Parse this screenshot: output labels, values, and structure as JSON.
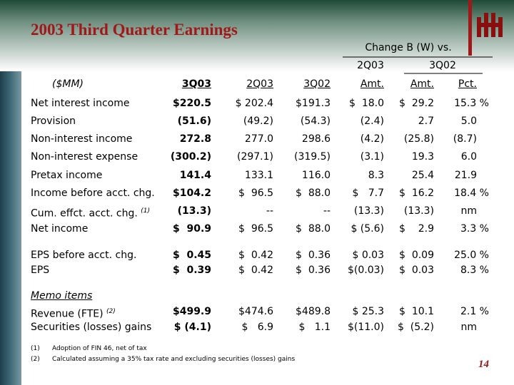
{
  "title": "2003 Third Quarter Earnings",
  "page_number": "14",
  "header": {
    "change_label": "Change B (W) vs.",
    "group_1": "2Q03",
    "group_2": "3Q02",
    "units": "($MM)",
    "columns": [
      "3Q03",
      "2Q03",
      "3Q02",
      "Amt.",
      "Amt.",
      "Pct."
    ]
  },
  "rows": [
    {
      "label": "Net interest income",
      "cells": [
        "$220.5",
        "$ 202.4",
        "$191.3",
        "$  18.0",
        "$  29.2",
        "15.3 %"
      ]
    },
    {
      "label": "Provision",
      "cells": [
        "(51.6)",
        "(49.2)",
        "(54.3)",
        "(2.4)",
        "2.7",
        "5.0"
      ]
    },
    {
      "label": "Non-interest income",
      "cells": [
        "272.8",
        "277.0",
        "298.6",
        "(4.2)",
        "(25.8)",
        "(8.7)"
      ]
    },
    {
      "label": "Non-interest expense",
      "cells": [
        "(300.2)",
        "(297.1)",
        "(319.5)",
        "(3.1)",
        "19.3",
        "6.0"
      ]
    },
    {
      "label": "Pretax income",
      "cells": [
        "141.4",
        "133.1",
        "116.0",
        "8.3",
        "25.4",
        "21.9"
      ]
    },
    {
      "label": "Income before acct. chg.",
      "cells": [
        "$104.2",
        "$  96.5",
        "$  88.0",
        "$   7.7",
        "$  16.2",
        "18.4 %"
      ]
    },
    {
      "label": "Cum. effct. acct. chg.",
      "note": "(1)",
      "cells": [
        "(13.3)",
        "--",
        "--",
        "(13.3)",
        "(13.3)",
        "nm"
      ]
    },
    {
      "label": "Net income",
      "cells": [
        "$  90.9",
        "$  96.5",
        "$  88.0",
        "$ (5.6)",
        "$    2.9",
        "3.3 %"
      ]
    },
    {
      "label": "EPS before acct. chg.",
      "cells": [
        "$  0.45",
        "$  0.42",
        "$  0.36",
        "$ 0.03",
        "$  0.09",
        "25.0 %"
      ]
    },
    {
      "label": "EPS",
      "cells": [
        "$  0.39",
        "$  0.42",
        "$  0.36",
        "$(0.03)",
        "$  0.03",
        "8.3 %"
      ]
    },
    {
      "label": "Revenue (FTE)",
      "note": "(2)",
      "cells": [
        "$499.9",
        "$474.6",
        "$489.8",
        "$ 25.3",
        "$  10.1",
        "2.1 %"
      ]
    },
    {
      "label": "Securities (losses) gains",
      "cells": [
        "$ (4.1)",
        "$   6.9",
        "$   1.1",
        "$(11.0)",
        "$  (5.2)",
        "nm"
      ]
    }
  ],
  "memo_label": "Memo items",
  "footnotes": [
    {
      "mark": "(1)",
      "text": "Adoption of FIN 46, net of tax"
    },
    {
      "mark": "(2)",
      "text": "Calculated assuming a 35% tax rate and excluding securities (losses) gains"
    }
  ]
}
